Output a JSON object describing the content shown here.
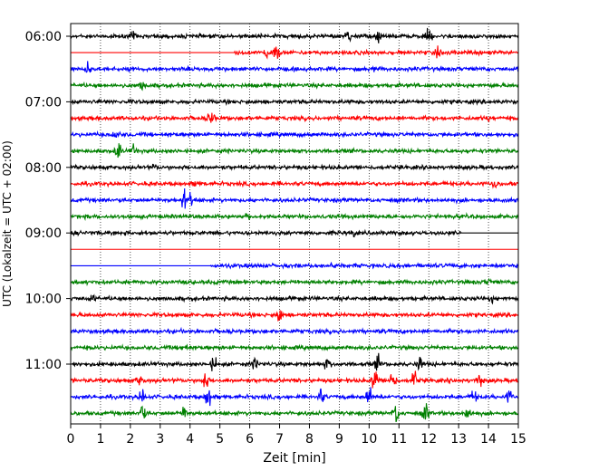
{
  "chart_data": {
    "type": "line",
    "xlabel": "Zeit  [min]",
    "ylabel": "UTC (Lokalzeit = UTC + 02:00)",
    "xlim": [
      0,
      15
    ],
    "x_ticks": [
      "0",
      "1",
      "2",
      "3",
      "4",
      "5",
      "6",
      "7",
      "8",
      "9",
      "10",
      "11",
      "12",
      "13",
      "14",
      "15"
    ],
    "y_ticks": [
      {
        "label": "06:00",
        "row": 0
      },
      {
        "label": "07:00",
        "row": 4
      },
      {
        "label": "08:00",
        "row": 8
      },
      {
        "label": "09:00",
        "row": 12
      },
      {
        "label": "10:00",
        "row": 16
      },
      {
        "label": "11:00",
        "row": 20
      }
    ],
    "grid": "vertical dotted at each minute",
    "row_colors": [
      "#000000",
      "#ff0000",
      "#0000ff",
      "#008000"
    ],
    "rows": [
      {
        "start_utc": "06:00",
        "color": "black",
        "events": [
          {
            "t": 2.1,
            "amp": 1.2
          },
          {
            "t": 9.3,
            "amp": 2.2
          },
          {
            "t": 10.3,
            "amp": 2.0
          },
          {
            "t": 12.0,
            "amp": 2.8
          }
        ]
      },
      {
        "start_utc": "06:15",
        "color": "red",
        "flat_until": 5.5,
        "events": [
          {
            "t": 6.6,
            "amp": 2.8
          },
          {
            "t": 6.9,
            "amp": 3.2
          },
          {
            "t": 12.3,
            "amp": 1.6
          }
        ]
      },
      {
        "start_utc": "06:30",
        "color": "blue",
        "events": [
          {
            "t": 0.6,
            "amp": 2.2
          },
          {
            "t": 10.1,
            "amp": 0.8
          }
        ]
      },
      {
        "start_utc": "06:45",
        "color": "green",
        "events": [
          {
            "t": 2.4,
            "amp": 2.0
          }
        ]
      },
      {
        "start_utc": "07:00",
        "color": "black",
        "events": []
      },
      {
        "start_utc": "07:15",
        "color": "red",
        "events": [
          {
            "t": 4.7,
            "amp": 4.0
          },
          {
            "t": 14.0,
            "amp": 1.0
          }
        ]
      },
      {
        "start_utc": "07:30",
        "color": "blue",
        "events": [
          {
            "t": 1.5,
            "amp": 2.0
          }
        ]
      },
      {
        "start_utc": "07:45",
        "color": "green",
        "events": [
          {
            "t": 1.6,
            "amp": 3.5
          },
          {
            "t": 2.1,
            "amp": 2.2
          }
        ]
      },
      {
        "start_utc": "08:00",
        "color": "black",
        "events": [
          {
            "t": 2.8,
            "amp": 0.8
          }
        ]
      },
      {
        "start_utc": "08:15",
        "color": "red",
        "events": [
          {
            "t": 4.2,
            "amp": 0.8
          },
          {
            "t": 14.2,
            "amp": 2.2
          }
        ]
      },
      {
        "start_utc": "08:30",
        "color": "blue",
        "events": [
          {
            "t": 3.8,
            "amp": 3.8
          },
          {
            "t": 4.05,
            "amp": 3.0
          }
        ]
      },
      {
        "start_utc": "08:45",
        "color": "green",
        "events": [
          {
            "t": 5.9,
            "amp": 1.0
          }
        ]
      },
      {
        "start_utc": "09:00",
        "color": "black",
        "data_until": 13.1,
        "events": [
          {
            "t": 9.5,
            "amp": 1.0
          }
        ]
      },
      {
        "start_utc": "09:15",
        "color": "red",
        "flat": true,
        "events": []
      },
      {
        "start_utc": "09:30",
        "color": "blue",
        "flat_until": 4.7,
        "events": [
          {
            "t": 8.8,
            "amp": 1.0
          }
        ]
      },
      {
        "start_utc": "09:45",
        "color": "green",
        "events": [
          {
            "t": 14.0,
            "amp": 1.0
          }
        ]
      },
      {
        "start_utc": "10:00",
        "color": "black",
        "events": [
          {
            "t": 0.7,
            "amp": 1.4
          },
          {
            "t": 14.1,
            "amp": 1.0
          }
        ]
      },
      {
        "start_utc": "10:15",
        "color": "red",
        "events": [
          {
            "t": 7.0,
            "amp": 3.5
          }
        ]
      },
      {
        "start_utc": "10:30",
        "color": "blue",
        "events": []
      },
      {
        "start_utc": "10:45",
        "color": "green",
        "events": [
          {
            "t": 3.8,
            "amp": 1.8
          }
        ]
      },
      {
        "start_utc": "11:00",
        "color": "black",
        "events": [
          {
            "t": 4.8,
            "amp": 3.0
          },
          {
            "t": 6.2,
            "amp": 2.5
          },
          {
            "t": 8.6,
            "amp": 2.6
          },
          {
            "t": 10.3,
            "amp": 3.0
          },
          {
            "t": 11.7,
            "amp": 2.5
          }
        ]
      },
      {
        "start_utc": "11:15",
        "color": "red",
        "events": [
          {
            "t": 2.3,
            "amp": 3.2
          },
          {
            "t": 4.5,
            "amp": 4.5
          },
          {
            "t": 10.2,
            "amp": 6.0
          },
          {
            "t": 10.8,
            "amp": 5.0
          },
          {
            "t": 11.5,
            "amp": 4.5
          },
          {
            "t": 13.7,
            "amp": 3.0
          }
        ]
      },
      {
        "start_utc": "11:30",
        "color": "blue",
        "events": [
          {
            "t": 2.4,
            "amp": 3.0
          },
          {
            "t": 4.6,
            "amp": 5.0
          },
          {
            "t": 8.4,
            "amp": 3.0
          },
          {
            "t": 10.0,
            "amp": 4.0
          },
          {
            "t": 13.5,
            "amp": 3.0
          },
          {
            "t": 14.7,
            "amp": 2.6
          }
        ]
      },
      {
        "start_utc": "11:45",
        "color": "green",
        "events": [
          {
            "t": 2.4,
            "amp": 4.0
          },
          {
            "t": 3.8,
            "amp": 2.8
          },
          {
            "t": 10.9,
            "amp": 4.5
          },
          {
            "t": 11.9,
            "amp": 4.0
          },
          {
            "t": 13.3,
            "amp": 3.0
          }
        ]
      }
    ]
  }
}
